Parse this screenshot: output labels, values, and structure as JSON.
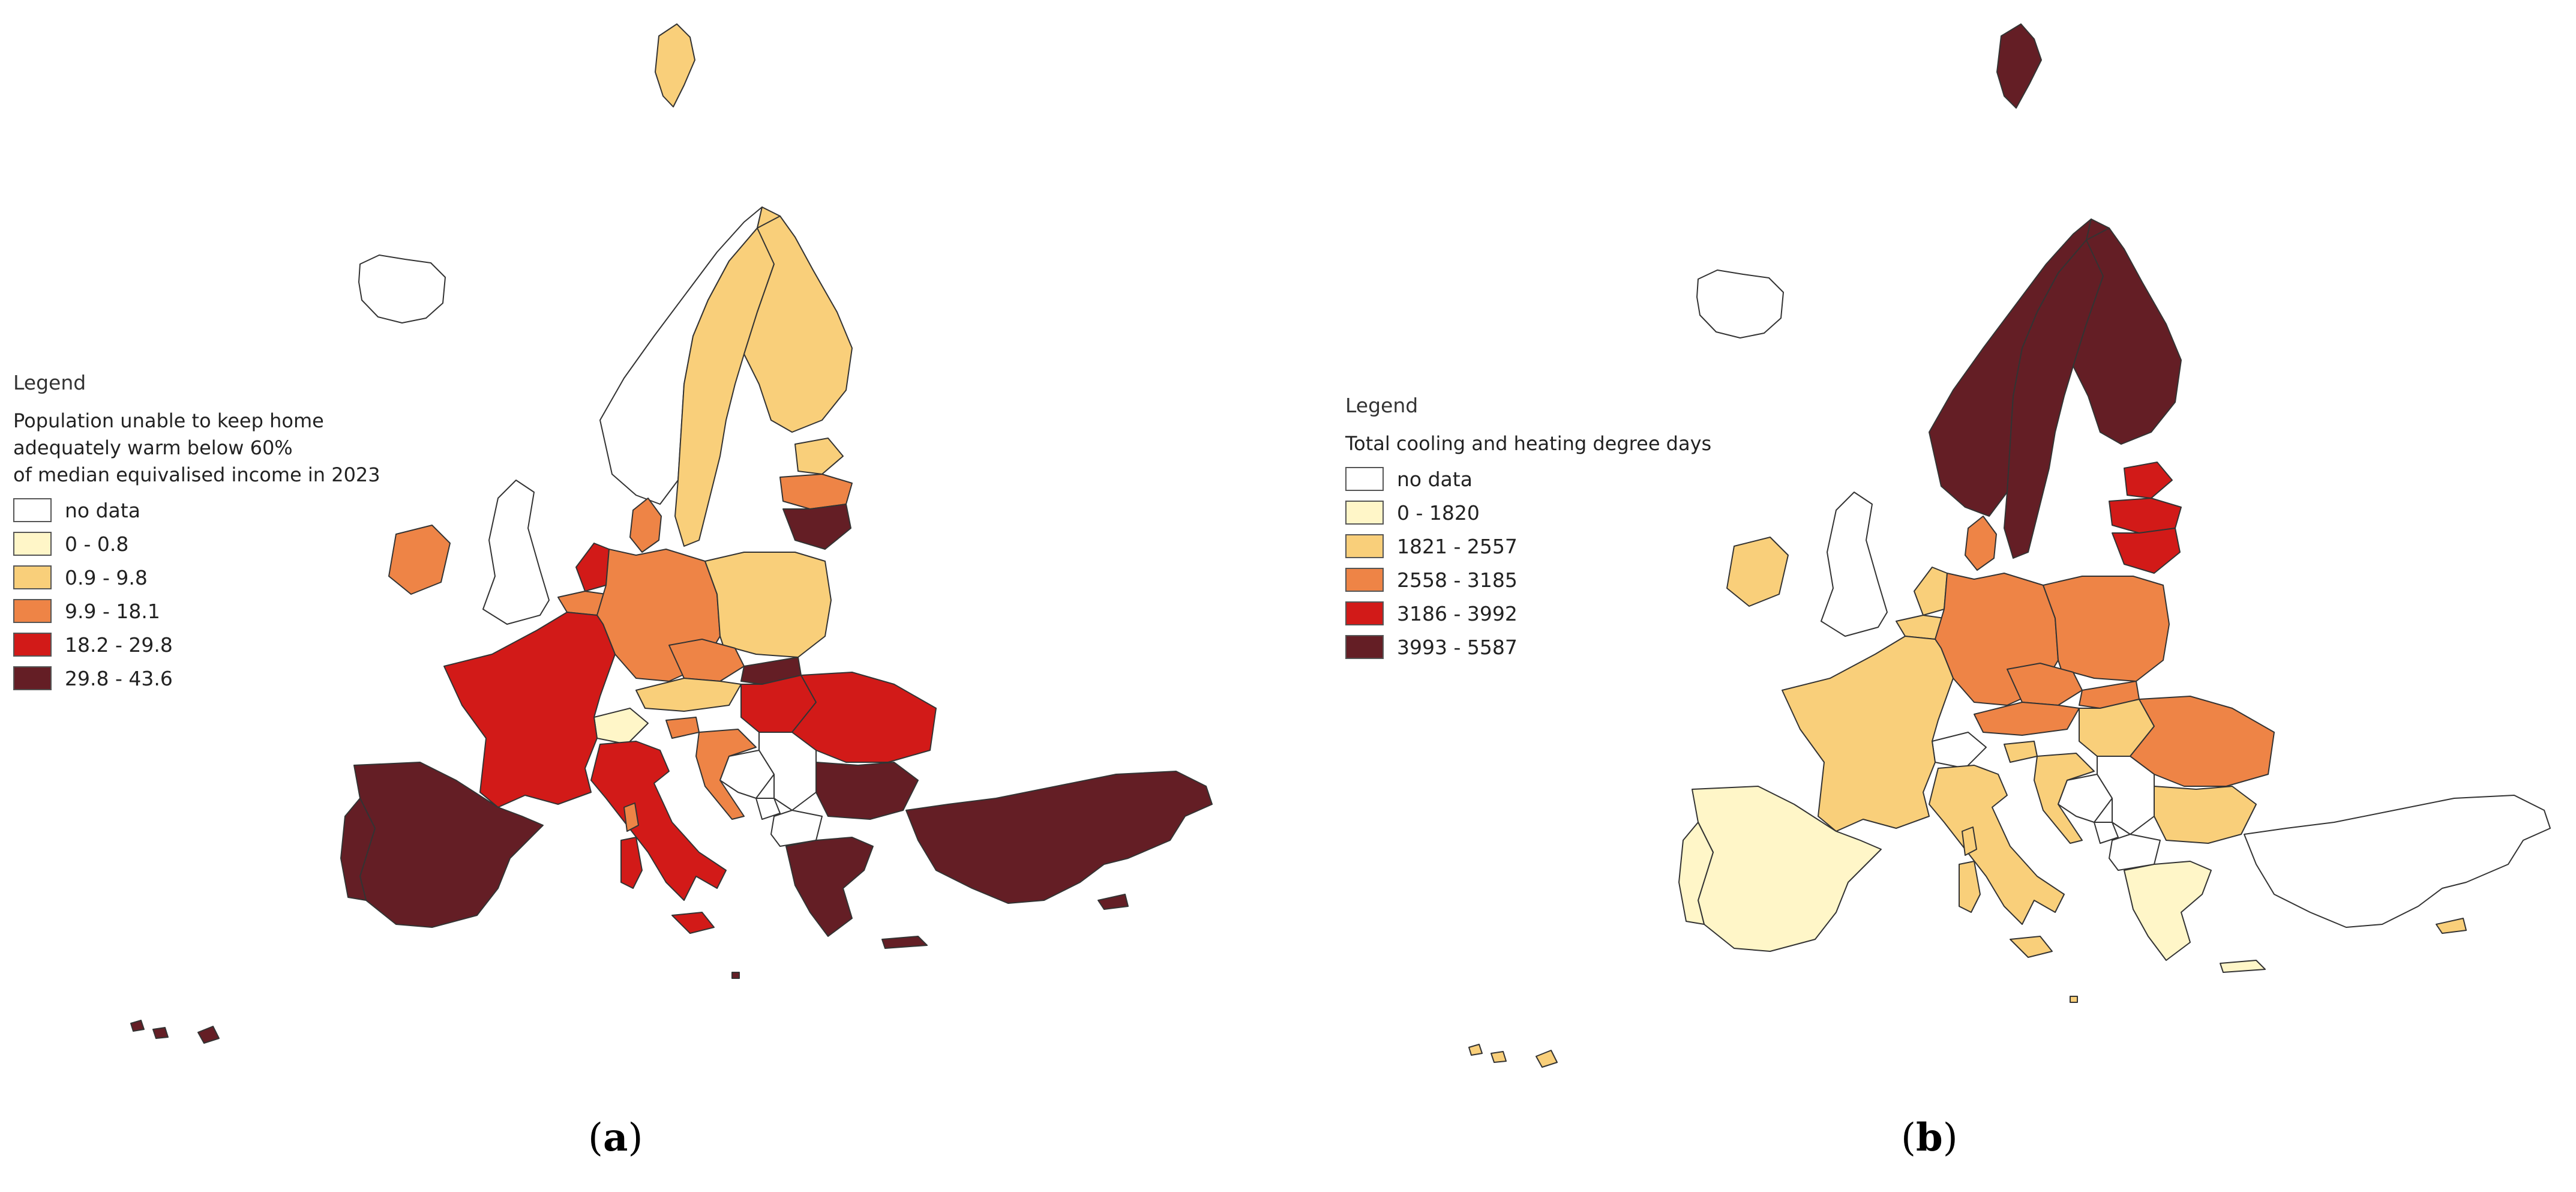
{
  "maps": [
    {
      "legend_heading": "Legend",
      "legend_title_lines": [
        "Population unable to keep home",
        "adequately warm below 60%",
        "of median equivalised income in 2023"
      ],
      "legend_items": [
        {
          "label": "no data",
          "color": "#ffffff"
        },
        {
          "label": "0 - 0.8",
          "color": "#fff6c8"
        },
        {
          "label": "0.9 - 9.8",
          "color": "#f9cf7a"
        },
        {
          "label": "9.9 - 18.1",
          "color": "#ee8446"
        },
        {
          "label": "18.2 - 29.8",
          "color": "#d21a18"
        },
        {
          "label": "29.8 - 43.6",
          "color": "#641e25"
        }
      ],
      "caption_letter": "a"
    },
    {
      "legend_heading": "Legend",
      "legend_title_lines": [
        "Total cooling and heating degree days"
      ],
      "legend_items": [
        {
          "label": "no data",
          "color": "#ffffff"
        },
        {
          "label": "0 - 1820",
          "color": "#fff6c8"
        },
        {
          "label": "1821 - 2557",
          "color": "#f9cf7a"
        },
        {
          "label": "2558 - 3185",
          "color": "#ee8446"
        },
        {
          "label": "3186 - 3992",
          "color": "#d21a18"
        },
        {
          "label": "3993 - 5587",
          "color": "#641e25"
        }
      ],
      "caption_letter": "b"
    }
  ]
}
